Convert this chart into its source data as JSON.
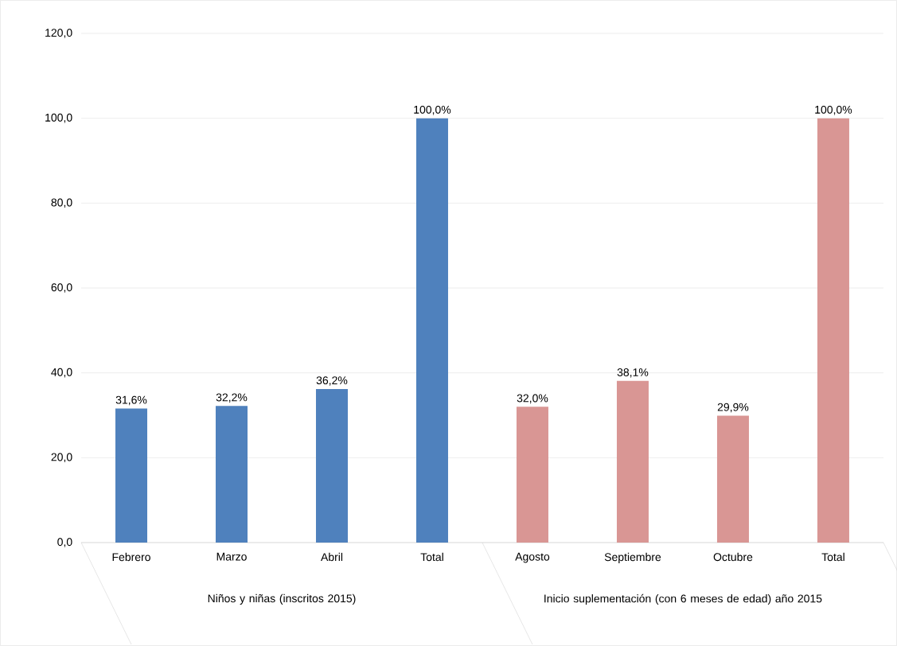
{
  "chart_data": {
    "type": "bar",
    "categories": [
      "Febrero",
      "Marzo",
      "Abril",
      "Total",
      "Agosto",
      "Septiembre",
      "Octubre",
      "Total"
    ],
    "values": [
      31.6,
      32.2,
      36.2,
      100,
      32.0,
      38.1,
      29.9,
      100
    ],
    "colors": [
      "#4f81bd",
      "#4f81bd",
      "#4f81bd",
      "#4f81bd",
      "#d99694",
      "#d99694",
      "#d99694",
      "#d99694"
    ],
    "value_labels": [
      "31,6%",
      "32,2%",
      "36,2%",
      "100,0%",
      "32,0%",
      "38,1%",
      "29,9%",
      "100,0%"
    ],
    "ylim": [
      0,
      120
    ],
    "yticks": [
      {
        "value": 0,
        "label": "0,0"
      },
      {
        "value": 20,
        "label": "20,0"
      },
      {
        "value": 40,
        "label": "40,0"
      },
      {
        "value": 60,
        "label": "60,0"
      },
      {
        "value": 80,
        "label": "80,0"
      },
      {
        "value": 100,
        "label": "100,0"
      },
      {
        "value": 120,
        "label": "120,0"
      }
    ],
    "grid": "y",
    "annotations": [
      "Niños y niñas (inscritos 2015)",
      "Inicio suplementación (con 6 meses de edad) año 2015"
    ]
  }
}
